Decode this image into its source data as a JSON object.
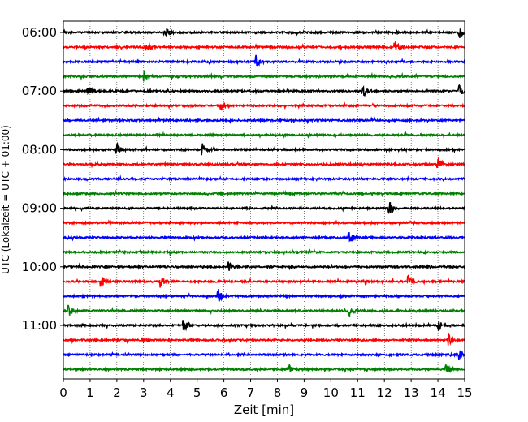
{
  "chart_data": {
    "type": "line",
    "title": "",
    "xlabel": "Zeit  [min]",
    "ylabel": "UTC (Lokalzeit = UTC + 01:00)",
    "xlim": [
      0,
      15
    ],
    "x_ticks": [
      0,
      1,
      2,
      3,
      4,
      5,
      6,
      7,
      8,
      9,
      10,
      11,
      12,
      13,
      14,
      15
    ],
    "x_tick_labels": [
      "0",
      "1",
      "2",
      "3",
      "4",
      "5",
      "6",
      "7",
      "8",
      "9",
      "10",
      "11",
      "12",
      "13",
      "14",
      "15"
    ],
    "y_tick_labels": [
      "06:00",
      "07:00",
      "08:00",
      "09:00",
      "10:00",
      "11:00"
    ],
    "grid": "vertical dotted at each minute",
    "trace_colors_cycle": [
      "#000000",
      "#ff0000",
      "#0000ff",
      "#008000"
    ],
    "series": [
      {
        "start": "06:00",
        "color": "#000000",
        "events_min": [
          3.8,
          14.8
        ]
      },
      {
        "start": "06:15",
        "color": "#ff0000",
        "events_min": [
          3.1,
          12.4
        ]
      },
      {
        "start": "06:30",
        "color": "#0000ff",
        "events_min": [
          7.2
        ]
      },
      {
        "start": "06:45",
        "color": "#008000",
        "events_min": [
          3.0
        ]
      },
      {
        "start": "07:00",
        "color": "#000000",
        "events_min": [
          0.9,
          11.2,
          14.8
        ]
      },
      {
        "start": "07:15",
        "color": "#ff0000",
        "events_min": [
          5.9
        ]
      },
      {
        "start": "07:30",
        "color": "#0000ff",
        "events_min": []
      },
      {
        "start": "07:45",
        "color": "#008000",
        "events_min": []
      },
      {
        "start": "08:00",
        "color": "#000000",
        "events_min": [
          2.0,
          5.2
        ]
      },
      {
        "start": "08:15",
        "color": "#ff0000",
        "events_min": [
          14.0
        ]
      },
      {
        "start": "08:30",
        "color": "#0000ff",
        "events_min": []
      },
      {
        "start": "08:45",
        "color": "#008000",
        "events_min": []
      },
      {
        "start": "09:00",
        "color": "#000000",
        "events_min": [
          12.2
        ]
      },
      {
        "start": "09:15",
        "color": "#ff0000",
        "events_min": []
      },
      {
        "start": "09:30",
        "color": "#0000ff",
        "events_min": [
          10.7
        ]
      },
      {
        "start": "09:45",
        "color": "#008000",
        "events_min": []
      },
      {
        "start": "10:00",
        "color": "#000000",
        "events_min": [
          6.2
        ]
      },
      {
        "start": "10:15",
        "color": "#ff0000",
        "events_min": [
          1.4,
          3.6,
          12.9
        ]
      },
      {
        "start": "10:30",
        "color": "#0000ff",
        "events_min": [
          5.8
        ]
      },
      {
        "start": "10:45",
        "color": "#008000",
        "events_min": [
          0.2,
          10.7
        ]
      },
      {
        "start": "11:00",
        "color": "#000000",
        "events_min": [
          4.5,
          14.0
        ]
      },
      {
        "start": "11:15",
        "color": "#ff0000",
        "events_min": [
          14.4
        ]
      },
      {
        "start": "11:30",
        "color": "#0000ff",
        "events_min": [
          14.8
        ]
      },
      {
        "start": "11:45",
        "color": "#008000",
        "events_min": [
          8.4,
          14.3
        ]
      }
    ]
  }
}
